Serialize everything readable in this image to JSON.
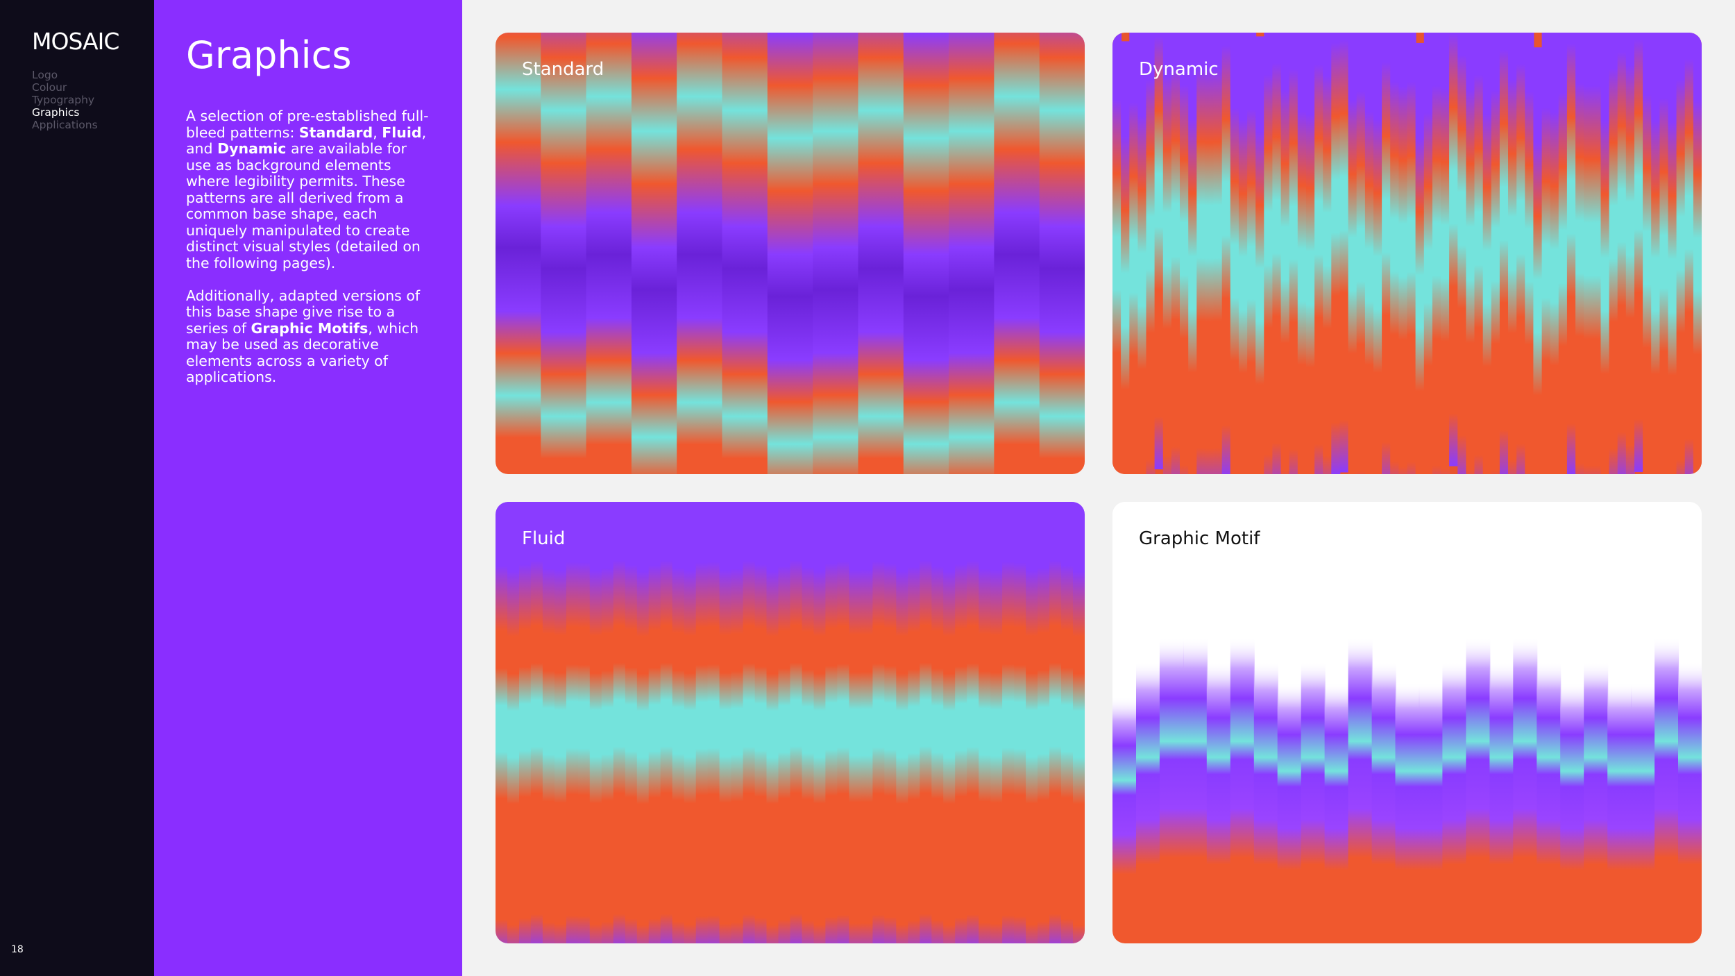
{
  "sidebar": {
    "logo": "MOSAIC",
    "nav": [
      "Logo",
      "Colour",
      "Typography",
      "Graphics",
      "Applications"
    ],
    "active": "Graphics",
    "page_number": "18"
  },
  "panel": {
    "title": "Graphics",
    "para1": {
      "intro": "A selection of pre-established full-bleed patterns: ",
      "b1": "Standard",
      "s1": ", ",
      "b2": "Fluid",
      "s2": ", and ",
      "b3": "Dynamic",
      "rest": " are available for use as background elements where legibility permits. These patterns are all derived from a common base shape, each uniquely manipulated to create distinct visual styles (detailed on the following pages)."
    },
    "para2": {
      "intro": "Additionally, adapted versions of this base shape give rise to a series of ",
      "b1": "Graphic Motifs",
      "rest": ", which may be used as decorative elements across a variety of applications."
    }
  },
  "cards": {
    "standard": "Standard",
    "dynamic": "Dynamic",
    "fluid": "Fluid",
    "motif": "Graphic Motif"
  },
  "colors": {
    "sidebar_bg": "#0e0c1a",
    "panel_bg": "#8a2eff",
    "purple": "#8a3cff",
    "orange": "#f0582e",
    "cyan": "#74e3dc",
    "page_bg": "#f2f2f2"
  }
}
